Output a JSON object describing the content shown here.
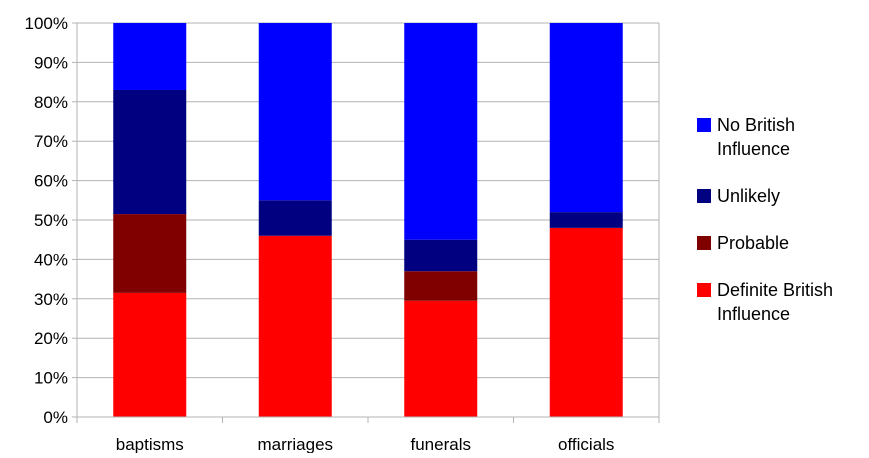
{
  "chart_data": {
    "type": "bar",
    "stacked": true,
    "normalized": true,
    "categories": [
      "baptisms",
      "marriages",
      "funerals",
      "officials"
    ],
    "series": [
      {
        "name": "Definite British Influence",
        "color": "#ff0000",
        "values": [
          31.5,
          46,
          29.5,
          48
        ]
      },
      {
        "name": "Probable",
        "color": "#800000",
        "values": [
          20,
          0,
          7.5,
          0
        ]
      },
      {
        "name": "Unlikely",
        "color": "#000080",
        "values": [
          31.5,
          9,
          8,
          4
        ]
      },
      {
        "name": "No British Influence",
        "color": "#0000ff",
        "values": [
          17,
          45,
          55,
          48
        ]
      }
    ],
    "y_ticks": [
      "0%",
      "10%",
      "20%",
      "30%",
      "40%",
      "50%",
      "60%",
      "70%",
      "80%",
      "90%",
      "100%"
    ],
    "ylim": [
      0,
      100
    ],
    "grid": true,
    "legend_position": "right",
    "legend_order": [
      "No British Influence",
      "Unlikely",
      "Probable",
      "Definite British Influence"
    ],
    "legend_lines": {
      "No British Influence": [
        "No British",
        "Influence"
      ],
      "Unlikely": [
        "Unlikely"
      ],
      "Probable": [
        "Probable"
      ],
      "Definite British Influence": [
        "Definite British",
        "Influence"
      ]
    }
  }
}
